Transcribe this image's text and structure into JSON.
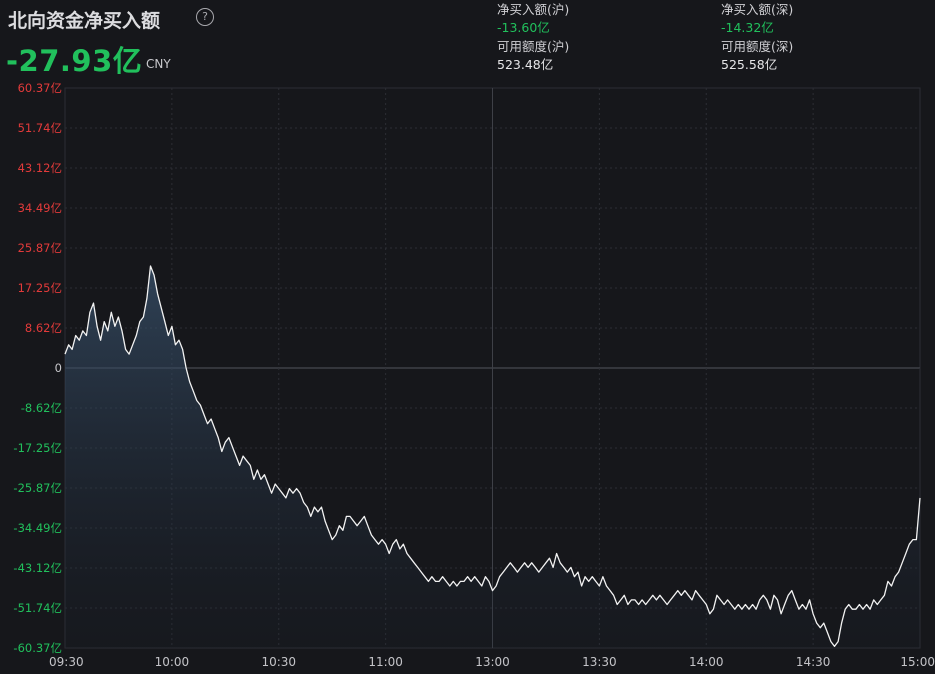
{
  "header": {
    "title": "北向资金净买入额",
    "total": "-27.93亿",
    "unit": "CNY",
    "sh_net_label": "净买入额(沪)",
    "sh_net_value": "-13.60亿",
    "sz_net_label": "净买入额(深)",
    "sz_net_value": "-14.32亿",
    "sh_quota_label": "可用额度(沪)",
    "sh_quota_value": "523.48亿",
    "sz_quota_label": "可用额度(深)",
    "sz_quota_value": "525.58亿"
  },
  "colors": {
    "up": "#e23a3a",
    "down": "#21c05c",
    "line": "#f2f2f2",
    "grid": "#2c2e34"
  },
  "chart_data": {
    "type": "area",
    "ylim": [
      -60.37,
      60.37
    ],
    "y_ticks": [
      {
        "v": 60.37,
        "label": "60.37亿"
      },
      {
        "v": 51.74,
        "label": "51.74亿"
      },
      {
        "v": 43.12,
        "label": "43.12亿"
      },
      {
        "v": 34.49,
        "label": "34.49亿"
      },
      {
        "v": 25.87,
        "label": "25.87亿"
      },
      {
        "v": 17.25,
        "label": "17.25亿"
      },
      {
        "v": 8.62,
        "label": "8.62亿"
      },
      {
        "v": 0,
        "label": "0"
      },
      {
        "v": -8.62,
        "label": "-8.62亿"
      },
      {
        "v": -17.25,
        "label": "-17.25亿"
      },
      {
        "v": -25.87,
        "label": "-25.87亿"
      },
      {
        "v": -34.49,
        "label": "-34.49亿"
      },
      {
        "v": -43.12,
        "label": "-43.12亿"
      },
      {
        "v": -51.74,
        "label": "-51.74亿"
      },
      {
        "v": -60.37,
        "label": "-60.37亿"
      }
    ],
    "x_ticks": [
      {
        "t": 0,
        "label": "09:30"
      },
      {
        "t": 30,
        "label": "10:00"
      },
      {
        "t": 60,
        "label": "10:30"
      },
      {
        "t": 90,
        "label": "11:00"
      },
      {
        "t": 120,
        "label": "13:00"
      },
      {
        "t": 150,
        "label": "13:30"
      },
      {
        "t": 180,
        "label": "14:00"
      },
      {
        "t": 210,
        "label": "14:30"
      },
      {
        "t": 240,
        "label": "15:00"
      }
    ],
    "xlim": [
      0,
      240
    ],
    "x_unit": "trading minutes since 09:30",
    "series": [
      {
        "values": [
          [
            0,
            3
          ],
          [
            1,
            5
          ],
          [
            2,
            4
          ],
          [
            3,
            7
          ],
          [
            4,
            6
          ],
          [
            5,
            8
          ],
          [
            6,
            7
          ],
          [
            7,
            12
          ],
          [
            8,
            14
          ],
          [
            9,
            9
          ],
          [
            10,
            6
          ],
          [
            11,
            10
          ],
          [
            12,
            8
          ],
          [
            13,
            12
          ],
          [
            14,
            9
          ],
          [
            15,
            11
          ],
          [
            16,
            8
          ],
          [
            17,
            4
          ],
          [
            18,
            3
          ],
          [
            19,
            5
          ],
          [
            20,
            7
          ],
          [
            21,
            10
          ],
          [
            22,
            11
          ],
          [
            23,
            15
          ],
          [
            24,
            22
          ],
          [
            25,
            20
          ],
          [
            26,
            16
          ],
          [
            27,
            13
          ],
          [
            28,
            10
          ],
          [
            29,
            7
          ],
          [
            30,
            9
          ],
          [
            31,
            5
          ],
          [
            32,
            6
          ],
          [
            33,
            4
          ],
          [
            34,
            0
          ],
          [
            35,
            -3
          ],
          [
            36,
            -5
          ],
          [
            37,
            -7
          ],
          [
            38,
            -8
          ],
          [
            39,
            -10
          ],
          [
            40,
            -12
          ],
          [
            41,
            -11
          ],
          [
            42,
            -13
          ],
          [
            43,
            -15
          ],
          [
            44,
            -18
          ],
          [
            45,
            -16
          ],
          [
            46,
            -15
          ],
          [
            47,
            -17
          ],
          [
            48,
            -19
          ],
          [
            49,
            -21
          ],
          [
            50,
            -19
          ],
          [
            51,
            -20
          ],
          [
            52,
            -21
          ],
          [
            53,
            -24
          ],
          [
            54,
            -22
          ],
          [
            55,
            -24
          ],
          [
            56,
            -23
          ],
          [
            57,
            -25
          ],
          [
            58,
            -27
          ],
          [
            59,
            -25
          ],
          [
            60,
            -26
          ],
          [
            61,
            -27
          ],
          [
            62,
            -28
          ],
          [
            63,
            -26
          ],
          [
            64,
            -27
          ],
          [
            65,
            -26
          ],
          [
            66,
            -27
          ],
          [
            67,
            -29
          ],
          [
            68,
            -30
          ],
          [
            69,
            -32
          ],
          [
            70,
            -30
          ],
          [
            71,
            -31
          ],
          [
            72,
            -30
          ],
          [
            73,
            -33
          ],
          [
            74,
            -35
          ],
          [
            75,
            -37
          ],
          [
            76,
            -36
          ],
          [
            77,
            -34
          ],
          [
            78,
            -35
          ],
          [
            79,
            -32
          ],
          [
            80,
            -32
          ],
          [
            81,
            -33
          ],
          [
            82,
            -34
          ],
          [
            83,
            -33
          ],
          [
            84,
            -32
          ],
          [
            85,
            -34
          ],
          [
            86,
            -36
          ],
          [
            87,
            -37
          ],
          [
            88,
            -38
          ],
          [
            89,
            -37
          ],
          [
            90,
            -38
          ],
          [
            91,
            -40
          ],
          [
            92,
            -38
          ],
          [
            93,
            -37
          ],
          [
            94,
            -39
          ],
          [
            95,
            -38
          ],
          [
            96,
            -40
          ],
          [
            97,
            -41
          ],
          [
            98,
            -42
          ],
          [
            99,
            -43
          ],
          [
            100,
            -44
          ],
          [
            101,
            -45
          ],
          [
            102,
            -46
          ],
          [
            103,
            -45
          ],
          [
            104,
            -46
          ],
          [
            105,
            -46
          ],
          [
            106,
            -45
          ],
          [
            107,
            -46
          ],
          [
            108,
            -47
          ],
          [
            109,
            -46
          ],
          [
            110,
            -47
          ],
          [
            111,
            -46
          ],
          [
            112,
            -46
          ],
          [
            113,
            -45
          ],
          [
            114,
            -46
          ],
          [
            115,
            -45
          ],
          [
            116,
            -46
          ],
          [
            117,
            -47
          ],
          [
            118,
            -45
          ],
          [
            119,
            -46
          ],
          [
            120,
            -48
          ],
          [
            121,
            -47
          ],
          [
            122,
            -45
          ],
          [
            123,
            -44
          ],
          [
            124,
            -43
          ],
          [
            125,
            -42
          ],
          [
            126,
            -43
          ],
          [
            127,
            -44
          ],
          [
            128,
            -43
          ],
          [
            129,
            -42
          ],
          [
            130,
            -43
          ],
          [
            131,
            -42
          ],
          [
            132,
            -43
          ],
          [
            133,
            -44
          ],
          [
            134,
            -43
          ],
          [
            135,
            -42
          ],
          [
            136,
            -41
          ],
          [
            137,
            -43
          ],
          [
            138,
            -40
          ],
          [
            139,
            -42
          ],
          [
            140,
            -43
          ],
          [
            141,
            -44
          ],
          [
            142,
            -43
          ],
          [
            143,
            -45
          ],
          [
            144,
            -44
          ],
          [
            145,
            -47
          ],
          [
            146,
            -45
          ],
          [
            147,
            -46
          ],
          [
            148,
            -45
          ],
          [
            149,
            -46
          ],
          [
            150,
            -47
          ],
          [
            151,
            -45
          ],
          [
            152,
            -47
          ],
          [
            153,
            -48
          ],
          [
            154,
            -49
          ],
          [
            155,
            -51
          ],
          [
            156,
            -50
          ],
          [
            157,
            -49
          ],
          [
            158,
            -51
          ],
          [
            159,
            -50
          ],
          [
            160,
            -50
          ],
          [
            161,
            -51
          ],
          [
            162,
            -50
          ],
          [
            163,
            -51
          ],
          [
            164,
            -50
          ],
          [
            165,
            -49
          ],
          [
            166,
            -50
          ],
          [
            167,
            -49
          ],
          [
            168,
            -50
          ],
          [
            169,
            -51
          ],
          [
            170,
            -50
          ],
          [
            171,
            -49
          ],
          [
            172,
            -48
          ],
          [
            173,
            -49
          ],
          [
            174,
            -48
          ],
          [
            175,
            -49
          ],
          [
            176,
            -50
          ],
          [
            177,
            -48
          ],
          [
            178,
            -49
          ],
          [
            179,
            -50
          ],
          [
            180,
            -51
          ],
          [
            181,
            -53
          ],
          [
            182,
            -52
          ],
          [
            183,
            -49
          ],
          [
            184,
            -50
          ],
          [
            185,
            -51
          ],
          [
            186,
            -50
          ],
          [
            187,
            -51
          ],
          [
            188,
            -52
          ],
          [
            189,
            -51
          ],
          [
            190,
            -52
          ],
          [
            191,
            -51
          ],
          [
            192,
            -52
          ],
          [
            193,
            -51
          ],
          [
            194,
            -52
          ],
          [
            195,
            -50
          ],
          [
            196,
            -49
          ],
          [
            197,
            -50
          ],
          [
            198,
            -52
          ],
          [
            199,
            -49
          ],
          [
            200,
            -50
          ],
          [
            201,
            -53
          ],
          [
            202,
            -51
          ],
          [
            203,
            -49
          ],
          [
            204,
            -48
          ],
          [
            205,
            -50
          ],
          [
            206,
            -52
          ],
          [
            207,
            -51
          ],
          [
            208,
            -52
          ],
          [
            209,
            -50
          ],
          [
            210,
            -53
          ],
          [
            211,
            -55
          ],
          [
            212,
            -56
          ],
          [
            213,
            -55
          ],
          [
            214,
            -57
          ],
          [
            215,
            -59
          ],
          [
            216,
            -60
          ],
          [
            217,
            -59
          ],
          [
            218,
            -55
          ],
          [
            219,
            -52
          ],
          [
            220,
            -51
          ],
          [
            221,
            -52
          ],
          [
            222,
            -52
          ],
          [
            223,
            -51
          ],
          [
            224,
            -52
          ],
          [
            225,
            -51
          ],
          [
            226,
            -52
          ],
          [
            227,
            -50
          ],
          [
            228,
            -51
          ],
          [
            229,
            -50
          ],
          [
            230,
            -49
          ],
          [
            231,
            -46
          ],
          [
            232,
            -47
          ],
          [
            233,
            -45
          ],
          [
            234,
            -44
          ],
          [
            235,
            -42
          ],
          [
            236,
            -40
          ],
          [
            237,
            -38
          ],
          [
            238,
            -37
          ],
          [
            239,
            -37
          ],
          [
            240,
            -28
          ]
        ]
      }
    ],
    "grid": true
  }
}
